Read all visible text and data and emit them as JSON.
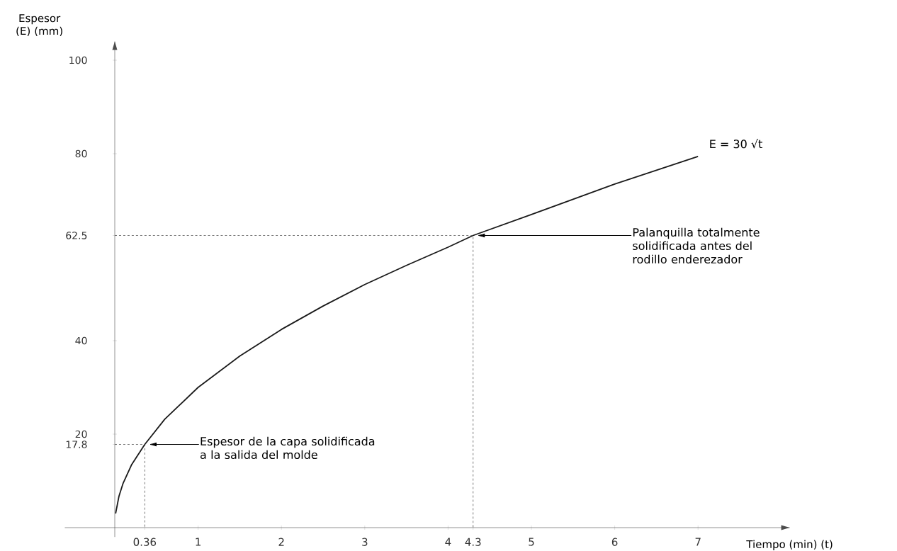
{
  "chart_data": {
    "type": "line",
    "xlabel": "Tiempo (min) (t)",
    "ylabel": "Espesor (E) (mm)",
    "xlim": [
      -0.6,
      8.1
    ],
    "ylim": [
      -2,
      104
    ],
    "xticks": [
      0.36,
      1,
      2,
      3,
      4,
      4.3,
      5,
      6,
      7
    ],
    "yticks": [
      17.8,
      20,
      40,
      62.5,
      80,
      100
    ],
    "marker": "none",
    "series": [
      {
        "color": "#1a1a1a",
        "x": [
          0.01,
          0.05,
          0.1,
          0.2,
          0.36,
          0.6,
          1,
          1.5,
          2,
          2.5,
          3,
          3.5,
          4,
          4.3,
          5,
          6,
          7
        ],
        "values": [
          3,
          6.7,
          9.5,
          13.4,
          17.8,
          23.2,
          30,
          36.7,
          42.4,
          47.4,
          52,
          56.1,
          60,
          62.5,
          67,
          73.5,
          79.4
        ]
      },
      {
        "color": "#555555",
        "line_style": "dashed",
        "x": [
          0,
          0.36,
          0.36
        ],
        "values": [
          17.8,
          17.8,
          0
        ]
      },
      {
        "color": "#555555",
        "line_style": "dashed",
        "x": [
          0,
          4.3,
          4.3
        ],
        "values": [
          62.5,
          62.5,
          0
        ]
      }
    ],
    "annotations": [
      "Espesor de la capa solidificada a la salida del molde",
      "Palanquilla totalmente solidificada antes del rodillo enderezador",
      "E = 30 √t"
    ]
  }
}
